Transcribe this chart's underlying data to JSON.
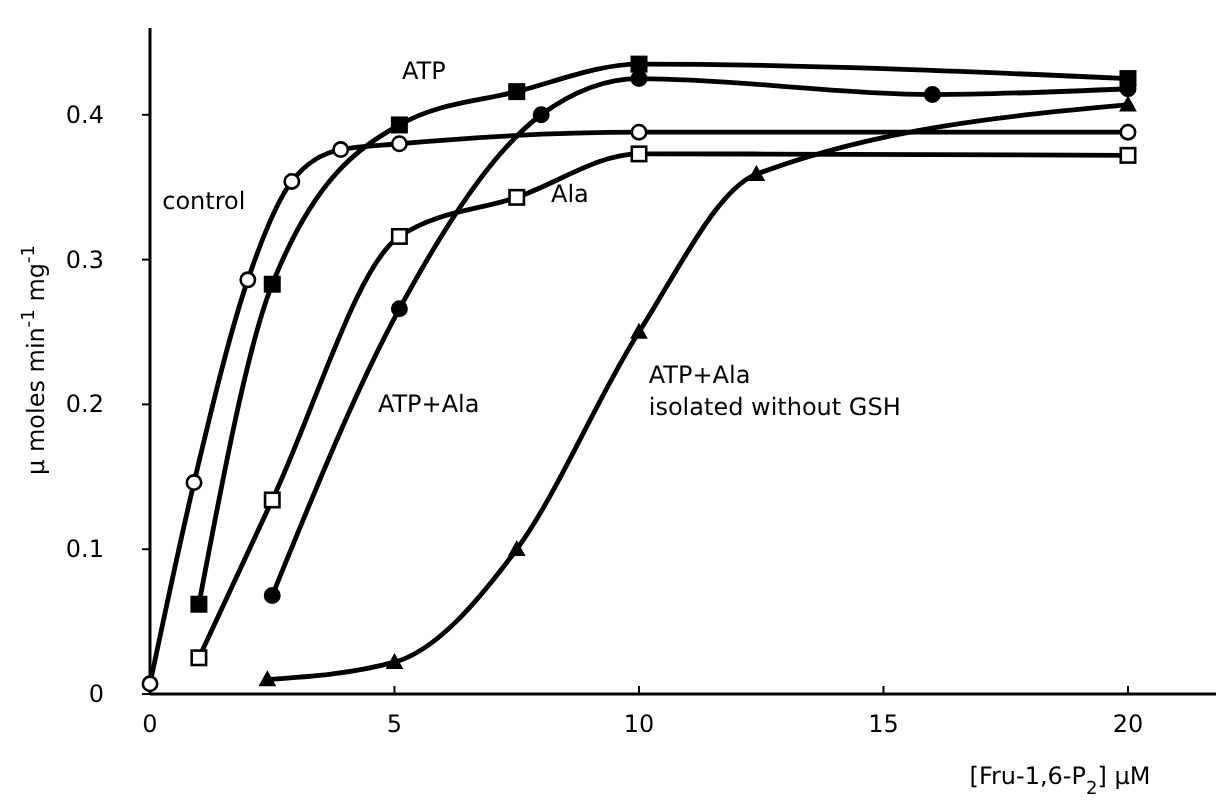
{
  "chart_data": {
    "type": "line",
    "xlabel": "[Fru-1,6-P$_{2}$]  μM",
    "ylabel": "μ moles min$^{-1}$ mg$^{-1}$",
    "xlim": [
      0,
      21.8
    ],
    "ylim": [
      0,
      0.46
    ],
    "xticks": [
      0,
      5,
      10,
      15,
      20
    ],
    "yticks": [
      0,
      0.1,
      0.2,
      0.3,
      0.4
    ],
    "grid": false,
    "line_style": "solid",
    "series": [
      {
        "name": "control",
        "color": "#000000",
        "marker": "circle",
        "x": [
          0,
          0.9,
          2.0,
          2.9,
          3.9,
          5.1,
          10,
          20
        ],
        "values": [
          0.007,
          0.146,
          0.286,
          0.354,
          0.376,
          0.38,
          0.388,
          0.388
        ]
      },
      {
        "name": "ATP",
        "color": "#000000",
        "marker": "square",
        "x": [
          1.0,
          2.5,
          5.1,
          7.5,
          10,
          20
        ],
        "values": [
          0.062,
          0.283,
          0.393,
          0.416,
          0.435,
          0.425
        ]
      },
      {
        "name": "Ala",
        "color": "#000000",
        "marker": "square",
        "x": [
          1.0,
          2.5,
          5.1,
          7.5,
          10,
          20
        ],
        "values": [
          0.025,
          0.134,
          0.316,
          0.343,
          0.373,
          0.372
        ]
      },
      {
        "name": "ATP+Ala",
        "color": "#000000",
        "marker": "circle",
        "x": [
          2.5,
          5.1,
          8.0,
          10,
          16,
          20
        ],
        "values": [
          0.068,
          0.266,
          0.4,
          0.425,
          0.414,
          0.418
        ]
      },
      {
        "name": "ATP+Ala isolated without GSH",
        "color": "#000000",
        "marker": "triangle",
        "x": [
          2.4,
          5.0,
          7.5,
          10,
          12.4,
          20
        ],
        "values": [
          0.01,
          0.022,
          0.1,
          0.25,
          0.359,
          0.407
        ]
      }
    ]
  }
}
